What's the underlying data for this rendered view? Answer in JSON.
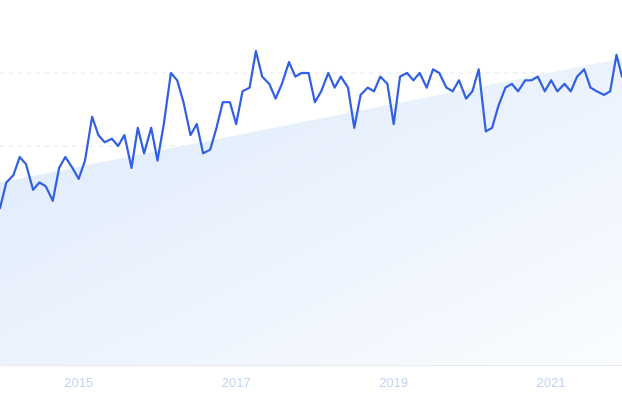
{
  "chart_data": {
    "type": "line",
    "title": "",
    "xlabel": "",
    "ylabel": "",
    "grid": true,
    "legend": "none",
    "colors": {
      "line": "#2f5fe3",
      "area_top": "#dce9fb",
      "area_bottom": "#fafcff",
      "grid": "#e1e6ef",
      "tick_label": "#c2d3f3"
    },
    "xlim": [
      2014.0,
      2021.9
    ],
    "ylim": [
      0,
      100
    ],
    "gridlines_y": [
      20,
      40,
      60,
      80
    ],
    "x_ticks": [
      {
        "value": 2015,
        "label": "2015"
      },
      {
        "value": 2017,
        "label": "2017"
      },
      {
        "value": 2019,
        "label": "2019"
      },
      {
        "value": 2021,
        "label": "2021"
      }
    ],
    "trend": {
      "x": [
        2014.0,
        2021.9
      ],
      "y": [
        50,
        84
      ]
    },
    "series": [
      {
        "x": [
          2014.0,
          2014.08,
          2014.17,
          2014.25,
          2014.33,
          2014.42,
          2014.5,
          2014.58,
          2014.67,
          2014.75,
          2014.83,
          2014.92,
          2015.0,
          2015.08,
          2015.17,
          2015.25,
          2015.33,
          2015.42,
          2015.5,
          2015.58,
          2015.67,
          2015.75,
          2015.83,
          2015.92,
          2016.0,
          2016.08,
          2016.17,
          2016.25,
          2016.33,
          2016.42,
          2016.5,
          2016.58,
          2016.67,
          2016.75,
          2016.83,
          2016.92,
          2017.0,
          2017.08,
          2017.17,
          2017.25,
          2017.33,
          2017.42,
          2017.5,
          2017.58,
          2017.67,
          2017.75,
          2017.83,
          2017.92,
          2018.0,
          2018.08,
          2018.17,
          2018.25,
          2018.33,
          2018.42,
          2018.5,
          2018.58,
          2018.67,
          2018.75,
          2018.83,
          2018.92,
          2019.0,
          2019.08,
          2019.17,
          2019.25,
          2019.33,
          2019.42,
          2019.5,
          2019.58,
          2019.67,
          2019.75,
          2019.83,
          2019.92,
          2020.0,
          2020.08,
          2020.17,
          2020.25,
          2020.33,
          2020.42,
          2020.5,
          2020.58,
          2020.67,
          2020.75,
          2020.83,
          2020.92,
          2021.0,
          2021.08,
          2021.17,
          2021.25,
          2021.33,
          2021.42,
          2021.5,
          2021.58,
          2021.67,
          2021.75,
          2021.83,
          2021.9
        ],
        "y": [
          43,
          50,
          52,
          57,
          55,
          48,
          50,
          49,
          45,
          54,
          57,
          54,
          51,
          56,
          68,
          63,
          61,
          62,
          60,
          63,
          54,
          65,
          58,
          65,
          56,
          66,
          80,
          78,
          72,
          63,
          66,
          58,
          59,
          65,
          72,
          72,
          66,
          75,
          76,
          86,
          79,
          77,
          73,
          77,
          83,
          79,
          80,
          80,
          72,
          75,
          80,
          76,
          79,
          76,
          65,
          74,
          76,
          75,
          79,
          77,
          66,
          79,
          80,
          78,
          80,
          76,
          81,
          80,
          76,
          75,
          78,
          73,
          75,
          81,
          64,
          65,
          71,
          76,
          77,
          75,
          78,
          78,
          79,
          75,
          78,
          75,
          77,
          75,
          79,
          81,
          76,
          75,
          74,
          75,
          85,
          79
        ]
      }
    ]
  }
}
